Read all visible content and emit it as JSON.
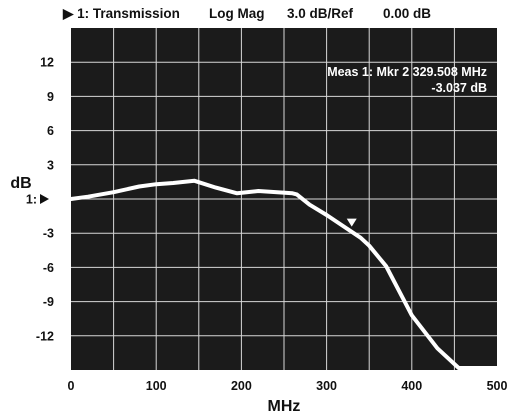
{
  "header": {
    "channel": "▶ 1: Transmission",
    "format": "Log Mag",
    "scale": "3.0 dB/Ref",
    "ref_value": "0.00 dB"
  },
  "chart_data": {
    "type": "line",
    "xlabel": "MHz",
    "ylabel": "dB",
    "xlim": [
      0,
      500
    ],
    "ylim": [
      -15,
      15
    ],
    "grid": true,
    "background": "#1b1b1b",
    "grid_color": "#d8d8d8",
    "trace_color": "#ffffff",
    "x_ticks": [
      {
        "value": 0,
        "label": "0"
      },
      {
        "value": 100,
        "label": "100"
      },
      {
        "value": 200,
        "label": "200"
      },
      {
        "value": 300,
        "label": "300"
      },
      {
        "value": 400,
        "label": "400"
      },
      {
        "value": 500,
        "label": "500"
      }
    ],
    "y_ticks": [
      {
        "value": 12,
        "label": "12"
      },
      {
        "value": 9,
        "label": "9"
      },
      {
        "value": 6,
        "label": "6"
      },
      {
        "value": 3,
        "label": "3"
      },
      {
        "value": 0,
        "label": "1:"
      },
      {
        "value": -3,
        "label": "-3"
      },
      {
        "value": -6,
        "label": "-6"
      },
      {
        "value": -9,
        "label": "-9"
      },
      {
        "value": -12,
        "label": "-12"
      }
    ],
    "ref_marker": {
      "value": 0,
      "icon": "ref-arrow-icon"
    },
    "series": [
      {
        "x": [
          0,
          20,
          50,
          80,
          100,
          120,
          145,
          170,
          195,
          220,
          260,
          265,
          280,
          300,
          320,
          340,
          350,
          370,
          400,
          430,
          455,
          480,
          500
        ],
        "y": [
          0.0,
          0.2,
          0.6,
          1.1,
          1.3,
          1.4,
          1.6,
          1.0,
          0.5,
          0.7,
          0.5,
          0.4,
          -0.5,
          -1.4,
          -2.4,
          -3.4,
          -4.1,
          -5.9,
          -10.2,
          -13.1,
          -15.0,
          -15.0,
          -15.0
        ]
      }
    ],
    "marker": {
      "x": 329.508,
      "y": -3.037,
      "icon": "marker-triangle-icon"
    },
    "annotation": {
      "line1": "Meas 1: Mkr 2  329.508 MHz",
      "line2": "-3.037 dB"
    }
  }
}
